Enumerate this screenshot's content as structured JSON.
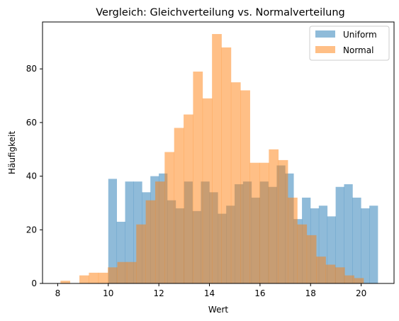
{
  "chart_data": {
    "type": "bar",
    "title": "Vergleich: Gleichverteilung vs. Normalverteilung",
    "xlabel": "Wert",
    "ylabel": "Häufigkeit",
    "xlim": [
      7.4,
      21.3
    ],
    "ylim": [
      0,
      97.5
    ],
    "xticks": [
      8,
      10,
      12,
      14,
      16,
      18,
      20
    ],
    "yticks": [
      0,
      20,
      40,
      60,
      80
    ],
    "legend_position": "top-right",
    "grid": false,
    "series": [
      {
        "name": "Uniform",
        "color": "#1f77b4",
        "alpha": 0.5,
        "bin_start": 10.0,
        "bin_width": 0.333,
        "values": [
          39,
          23,
          38,
          38,
          34,
          40,
          41,
          31,
          28,
          38,
          27,
          38,
          34,
          26,
          29,
          37,
          38,
          32,
          38,
          36,
          44,
          41,
          24,
          32,
          28,
          29,
          25,
          36,
          37,
          32,
          28,
          29
        ]
      },
      {
        "name": "Normal",
        "color": "#ff7f0e",
        "alpha": 0.5,
        "bin_start": 8.11,
        "bin_width": 0.3745,
        "values": [
          1,
          0,
          3,
          4,
          4,
          6,
          8,
          8,
          22,
          31,
          38,
          49,
          58,
          63,
          79,
          69,
          93,
          88,
          75,
          72,
          45,
          45,
          50,
          46,
          32,
          22,
          18,
          10,
          7,
          6,
          3,
          2
        ]
      }
    ]
  }
}
